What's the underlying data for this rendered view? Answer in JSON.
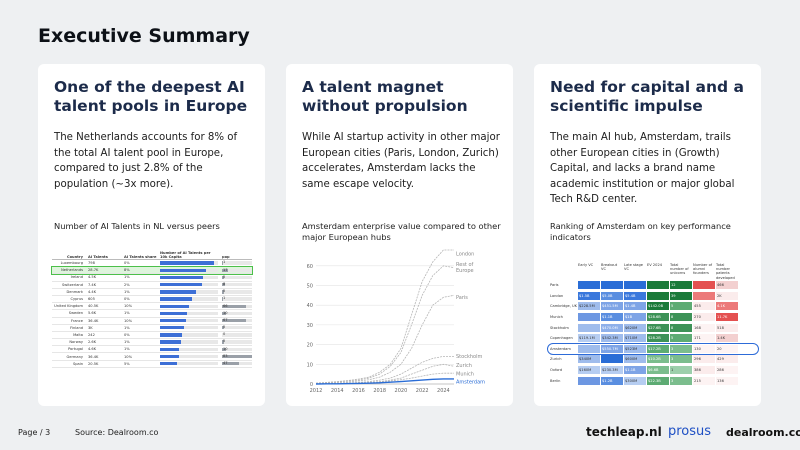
{
  "page_title": "Executive Summary",
  "cards": [
    {
      "title": "One of the deepest AI talent pools in Europe",
      "body": "The Netherlands accounts for 8% of the total AI talent pool in Europe, compared to just 2.8% of the population (~3x more).",
      "caption": "Number of AI Talents in NL versus peers"
    },
    {
      "title": "A talent magnet without propulsion",
      "body": "While AI startup activity in other major European cities (Paris, London, Zurich) accelerates, Amsterdam lacks the same escape velocity.",
      "caption": "Amsterdam enterprise value compared to other major European hubs"
    },
    {
      "title": "Need for capital and a scientific impulse",
      "body": "The main AI hub, Amsterdam, trails other European cities in (Growth) Capital, and lacks a brand name academic institution or major global Tech R&D center.",
      "caption": "Ranking of Amsterdam on key performance indicators"
    }
  ],
  "talent_table": {
    "headers": [
      "Country",
      "AI Talents",
      "AI Talents share",
      "Number of AI Talents per 10k Capita",
      "pop"
    ],
    "rows": [
      {
        "country": "Luxembourg",
        "talents": "798",
        "share": "0%",
        "per10k": 0.93,
        "pop": "1"
      },
      {
        "country": "Netherlands",
        "talents": "28.7K",
        "share": "8%",
        "per10k": 0.8,
        "pop": "17",
        "highlight": true
      },
      {
        "country": "Ireland",
        "talents": "4.5K",
        "share": "1%",
        "per10k": 0.74,
        "pop": "5"
      },
      {
        "country": "Switzerland",
        "talents": "7.4K",
        "share": "2%",
        "per10k": 0.72,
        "pop": "8"
      },
      {
        "country": "Denmark",
        "talents": "4.4K",
        "share": "1%",
        "per10k": 0.62,
        "pop": "5"
      },
      {
        "country": "Cyprus",
        "talents": "605",
        "share": "0%",
        "per10k": 0.55,
        "pop": "1"
      },
      {
        "country": "United Kingdom",
        "talents": "40.5K",
        "share": "10%",
        "per10k": 0.5,
        "pop": "66"
      },
      {
        "country": "Sweden",
        "talents": "5.6K",
        "share": "1%",
        "per10k": 0.46,
        "pop": "10"
      },
      {
        "country": "France",
        "talents": "36.4K",
        "share": "10%",
        "per10k": 0.44,
        "pop": "67"
      },
      {
        "country": "Finland",
        "talents": "3K",
        "share": "1%",
        "per10k": 0.41,
        "pop": "5"
      },
      {
        "country": "Malta",
        "talents": "242",
        "share": "0%",
        "per10k": 0.38,
        "pop": "0"
      },
      {
        "country": "Norway",
        "talents": "2.6K",
        "share": "1%",
        "per10k": 0.36,
        "pop": "5"
      },
      {
        "country": "Portugal",
        "talents": "4.6K",
        "share": "1%",
        "per10k": 0.33,
        "pop": "10"
      },
      {
        "country": "Germany",
        "talents": "36.4K",
        "share": "10%",
        "per10k": 0.32,
        "pop": "83"
      },
      {
        "country": "Spain",
        "talents": "20.5K",
        "share": "5%",
        "per10k": 0.3,
        "pop": "47"
      }
    ]
  },
  "chart_data": {
    "type": "line",
    "title": "Amsterdam enterprise value compared to other major European hubs",
    "x": [
      2012,
      2013,
      2014,
      2015,
      2016,
      2017,
      2018,
      2019,
      2020,
      2021,
      2022,
      2023,
      2024,
      2025
    ],
    "xticks": [
      2012,
      2014,
      2016,
      2018,
      2020,
      2022,
      2024
    ],
    "yticks": [
      0,
      10,
      20,
      30,
      40,
      50,
      60
    ],
    "ylim": [
      0,
      68
    ],
    "grid": true,
    "series": [
      {
        "name": "London",
        "values": [
          0.5,
          0.8,
          1.2,
          1.8,
          2.5,
          3.5,
          6,
          10,
          18,
          35,
          52,
          62,
          68,
          68
        ]
      },
      {
        "name": "Rest of Europe",
        "values": [
          0.3,
          0.6,
          1,
          1.5,
          2,
          3,
          5,
          9,
          16,
          30,
          45,
          55,
          60,
          59
        ]
      },
      {
        "name": "Paris",
        "values": [
          0.2,
          0.4,
          0.7,
          1,
          1.5,
          2.2,
          3.5,
          6,
          10,
          18,
          30,
          40,
          44,
          45
        ]
      },
      {
        "name": "Stockholm",
        "values": [
          0.1,
          0.2,
          0.3,
          0.5,
          0.8,
          1.2,
          2,
          3,
          5,
          8,
          11,
          13,
          14,
          14
        ]
      },
      {
        "name": "Zurich",
        "values": [
          0,
          0.1,
          0.2,
          0.3,
          0.5,
          0.8,
          1.2,
          2,
          3,
          5,
          7,
          9,
          10,
          9
        ]
      },
      {
        "name": "Munich",
        "values": [
          0,
          0.1,
          0.2,
          0.3,
          0.4,
          0.6,
          1,
          1.5,
          2.2,
          3,
          4,
          5,
          5.5,
          5.5
        ]
      },
      {
        "name": "Amsterdam",
        "values": [
          0,
          0.1,
          0.1,
          0.2,
          0.3,
          0.4,
          0.6,
          0.9,
          1.2,
          1.6,
          2,
          2.4,
          2.6,
          2.6
        ]
      }
    ]
  },
  "kpi_table": {
    "headers": [
      "Early VC",
      "Breakout VC",
      "Late stage VC",
      "EV 2024",
      "Total number of unicorns",
      "Number of alumni founders",
      "Total number patents developed"
    ],
    "rows": [
      {
        "city": "Paris",
        "cells": [
          "",
          "",
          "",
          "",
          "12",
          "",
          "466"
        ],
        "colors": [
          "#2a6dd6",
          "#2a6dd6",
          "#2a6dd6",
          "#1b7a3a",
          "#1b7a3a",
          "#e45050",
          "#f3d0d0"
        ]
      },
      {
        "city": "London",
        "cells": [
          "$1.5B",
          "$5.0B",
          "$5.4B",
          "",
          "39",
          "",
          "2K"
        ],
        "colors": [
          "#3a78dc",
          "#5a8ee0",
          "#3a78dc",
          "#1b7a3a",
          "#1b7a3a",
          "#ec7a7a",
          "#fbecec"
        ]
      },
      {
        "city": "Cambridge, UK",
        "cells": [
          "$228.5M",
          "$451.5M",
          "$1.4B",
          "$142.0B",
          "5",
          "455",
          "4.1K"
        ],
        "colors": [
          "#9fbcec",
          "#7ea4e6",
          "#7ea4e6",
          "#1b7a3a",
          "#5dab73",
          "#fbecec",
          "#ec7a7a"
        ]
      },
      {
        "city": "Munich",
        "cells": [
          "",
          "$1.1B",
          "$1B",
          "$28.6B",
          "8",
          "270",
          "11.7K"
        ],
        "colors": [
          "#6d97e2",
          "#5a8ee0",
          "#7ea4e6",
          "#3d9257",
          "#3d9257",
          "#fbecec",
          "#e45050"
        ]
      },
      {
        "city": "Stockholm",
        "cells": [
          "",
          "$470.0M",
          "$620M",
          "$27.6B",
          "8",
          "168",
          "518"
        ],
        "colors": [
          "#9fbcec",
          "#8eb0ea",
          "#9fbcec",
          "#3d9257",
          "#3d9257",
          "#fdf3f3",
          "#fbecec"
        ]
      },
      {
        "city": "Copenhagen",
        "cells": [
          "$119.1M",
          "$342.3M",
          "$710M",
          "$28.2B",
          "5",
          "171",
          "1.4K"
        ],
        "colors": [
          "#b6cdf1",
          "#9fbcec",
          "#9fbcec",
          "#3d9257",
          "#5dab73",
          "#fdf3f3",
          "#f3d0d0"
        ]
      },
      {
        "city": "Amsterdam",
        "cells": [
          "",
          "$550.7M",
          "$523M",
          "$17.2B",
          "3",
          "130",
          "20"
        ],
        "colors": [
          "#9fbcec",
          "#7ea4e6",
          "#9fbcec",
          "#5dab73",
          "#7bbd8d",
          "#fdf3f3",
          "#fdf3f3"
        ],
        "highlight": true
      },
      {
        "city": "Zurich",
        "cells": [
          "$340M",
          "",
          "$600M",
          "$10.2B",
          "3",
          "296",
          "429"
        ],
        "colors": [
          "#9fbcec",
          "#2a6dd6",
          "#9fbcec",
          "#7bbd8d",
          "#7bbd8d",
          "#fbecec",
          "#fbecec"
        ]
      },
      {
        "city": "Oxford",
        "cells": [
          "$160M",
          "$230.3M",
          "$1.1B",
          "$6.6B",
          "1",
          "386",
          "286"
        ],
        "colors": [
          "#b6cdf1",
          "#b6cdf1",
          "#7ea4e6",
          "#7bbd8d",
          "#9ccfab",
          "#fbecec",
          "#fdf3f3"
        ]
      },
      {
        "city": "Berlin",
        "cells": [
          "",
          "$1.2B",
          "$300M",
          "$22.3B",
          "3",
          "215",
          "136"
        ],
        "colors": [
          "#6d97e2",
          "#5a8ee0",
          "#b6cdf1",
          "#5dab73",
          "#7bbd8d",
          "#fdf3f3",
          "#fdf3f3"
        ]
      }
    ]
  },
  "footer": {
    "page_label": "Page",
    "page_num": "3",
    "source": "Source:  Dealroom.co",
    "logos": [
      "techleap.nl",
      "prosus",
      "dealroom.co"
    ]
  }
}
